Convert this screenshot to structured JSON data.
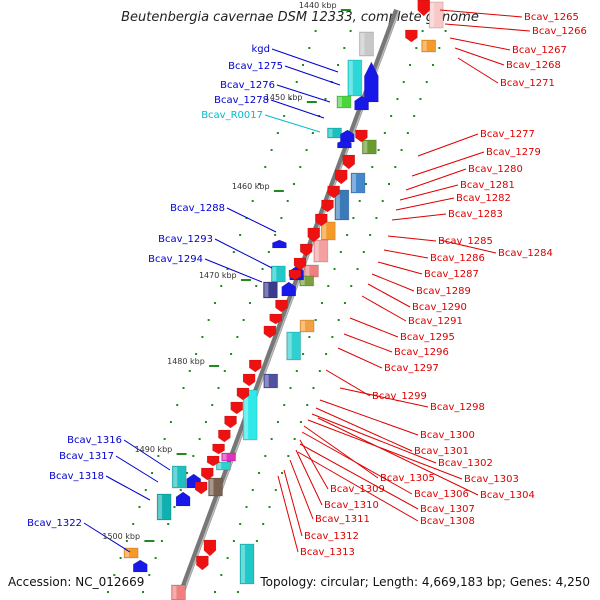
{
  "title": "Beutenbergia cavernae DSM 12333, complete genome",
  "footer": {
    "accession": "Accession: NC_012669",
    "summary": "Topology: circular; Length: 4,669,183 bp; Genes: 4,250"
  },
  "colors": {
    "forward_label": "#0000cc",
    "reverse_label": "#dd0000",
    "rna_label": "#00bbcc",
    "backbone": "#888888",
    "tick": "#228822"
  },
  "scale_labels": [
    "1440 kbp",
    "1450 kbp",
    "1460 kbp",
    "1470 kbp",
    "1480 kbp",
    "1490 kbp",
    "1500 kbp"
  ],
  "left_labels": [
    {
      "text": "kgd",
      "kind": "forward"
    },
    {
      "text": "Bcav_1275",
      "kind": "forward"
    },
    {
      "text": "Bcav_1276",
      "kind": "forward"
    },
    {
      "text": "Bcav_1278",
      "kind": "forward"
    },
    {
      "text": "Bcav_R0017",
      "kind": "rna"
    },
    {
      "text": "Bcav_1288",
      "kind": "forward"
    },
    {
      "text": "Bcav_1293",
      "kind": "forward"
    },
    {
      "text": "Bcav_1294",
      "kind": "forward"
    },
    {
      "text": "Bcav_1316",
      "kind": "forward"
    },
    {
      "text": "Bcav_1317",
      "kind": "forward"
    },
    {
      "text": "Bcav_1318",
      "kind": "forward"
    },
    {
      "text": "Bcav_1322",
      "kind": "forward"
    }
  ],
  "right_labels": [
    "Bcav_1265",
    "Bcav_1266",
    "Bcav_1267",
    "Bcav_1268",
    "Bcav_1271",
    "Bcav_1277",
    "Bcav_1279",
    "Bcav_1280",
    "Bcav_1281",
    "Bcav_1282",
    "Bcav_1283",
    "Bcav_1285",
    "Bcav_1284",
    "Bcav_1286",
    "Bcav_1287",
    "Bcav_1289",
    "Bcav_1290",
    "Bcav_1291",
    "Bcav_1295",
    "Bcav_1296",
    "Bcav_1297",
    "Bcav_1299",
    "Bcav_1298",
    "Bcav_1300",
    "Bcav_1301",
    "Bcav_1302",
    "Bcav_1303",
    "Bcav_1305",
    "Bcav_1304",
    "Bcav_1309",
    "Bcav_1306",
    "Bcav_1310",
    "Bcav_1307",
    "Bcav_1311",
    "Bcav_1308",
    "Bcav_1312",
    "Bcav_1313"
  ]
}
